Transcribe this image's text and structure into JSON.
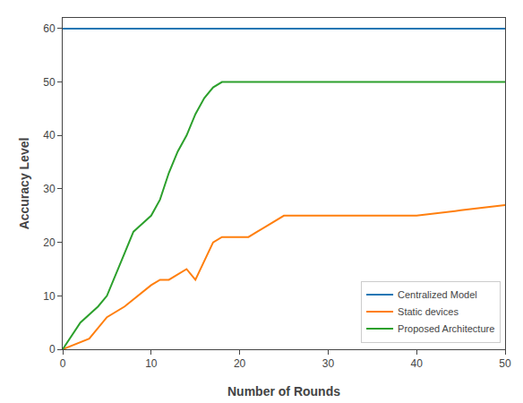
{
  "chart_data": {
    "type": "line",
    "x_label": "Number of Rounds",
    "y_label": "Accuracy Level",
    "xlim": [
      0,
      50
    ],
    "ylim": [
      0,
      62
    ],
    "xticks": [
      0,
      10,
      20,
      30,
      40,
      50
    ],
    "yticks": [
      0,
      10,
      20,
      30,
      40,
      50,
      60
    ],
    "series": [
      {
        "name": "Centralized Model",
        "x": [
          0,
          50
        ],
        "values": [
          60,
          60
        ]
      },
      {
        "name": "Static devices",
        "x": [
          0,
          3,
          5,
          7,
          10,
          11,
          12,
          14,
          15,
          17,
          18,
          20,
          21,
          22,
          25,
          26,
          28,
          30,
          35,
          40,
          45,
          50
        ],
        "values": [
          0,
          2,
          6,
          8,
          12,
          13,
          13,
          15,
          13,
          20,
          21,
          21,
          21,
          22,
          25,
          25,
          25,
          25,
          25,
          25,
          26,
          27
        ]
      },
      {
        "name": "Proposed Architecture",
        "x": [
          0,
          2,
          4,
          5,
          7,
          8,
          10,
          11,
          12,
          13,
          14,
          15,
          16,
          17,
          18,
          19,
          20,
          25,
          30,
          35,
          40,
          50
        ],
        "values": [
          0,
          5,
          8,
          10,
          18,
          22,
          25,
          28,
          33,
          37,
          40,
          44,
          47,
          49,
          50,
          50,
          50,
          50,
          50,
          50,
          50,
          50
        ]
      }
    ],
    "legend": "lower right",
    "grid": false
  }
}
